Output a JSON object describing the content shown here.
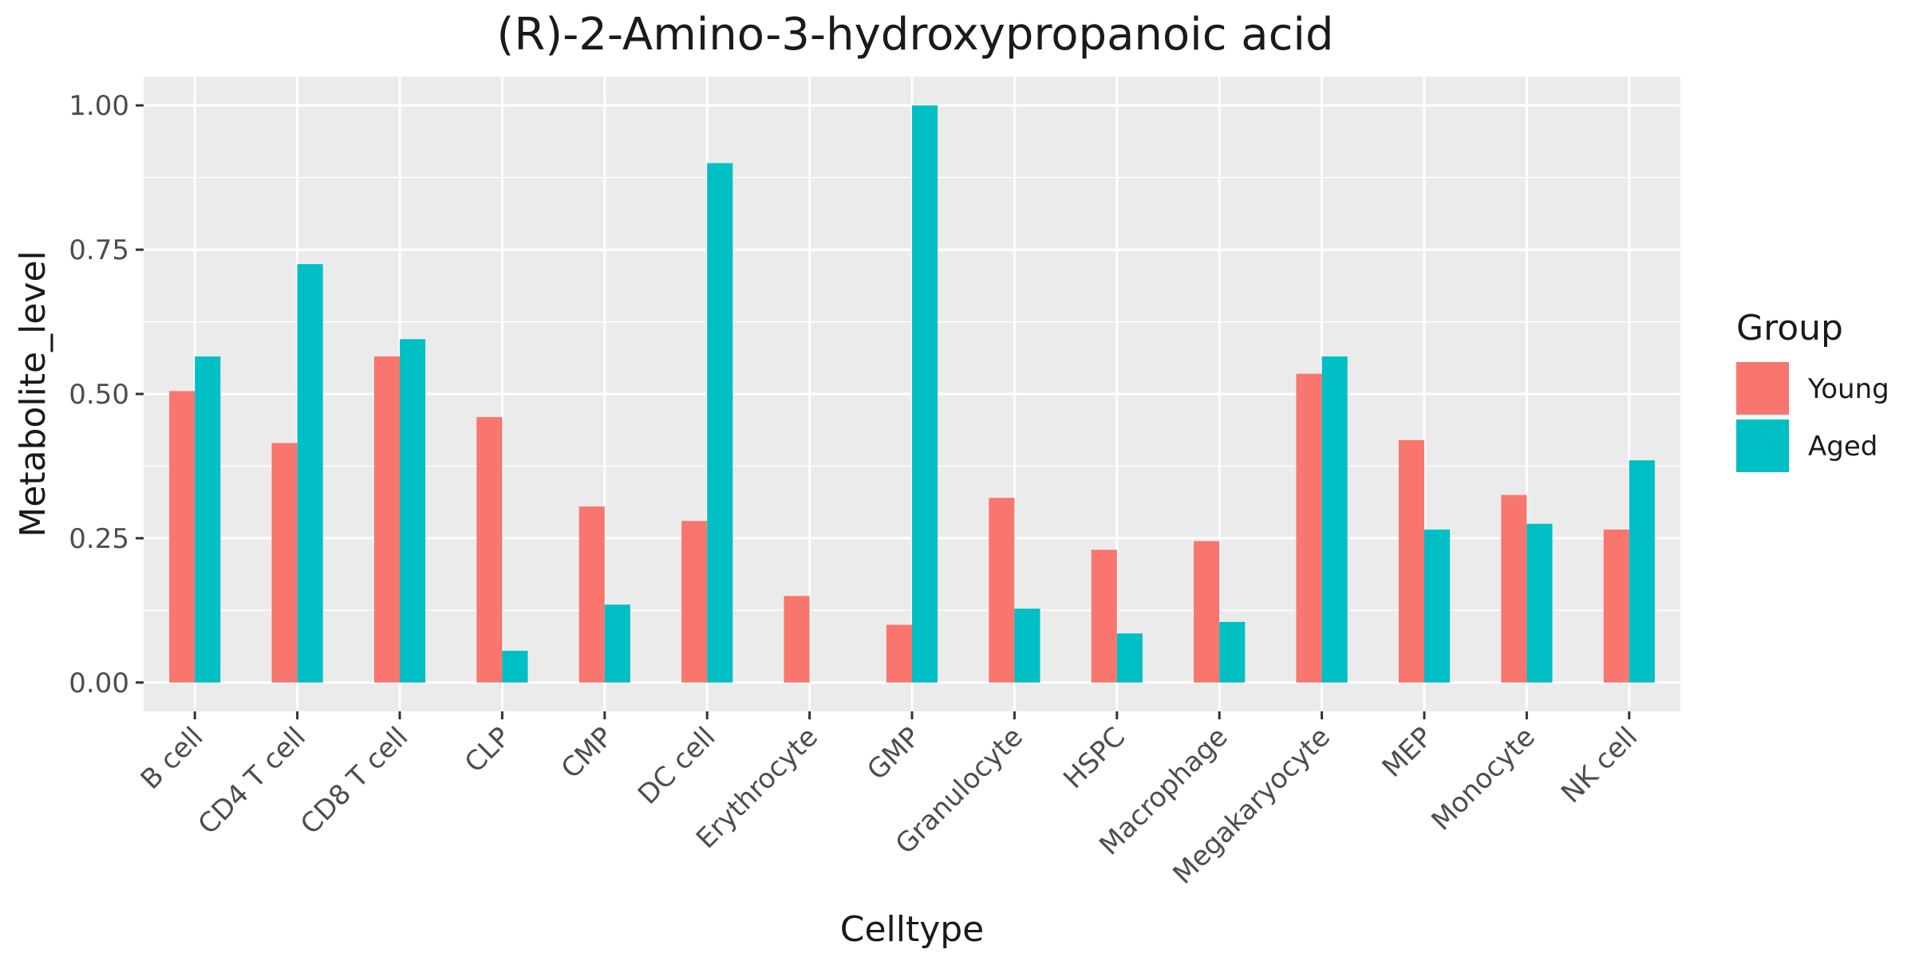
{
  "chart_data": {
    "type": "bar",
    "title": "(R)-2-Amino-3-hydroxypropanoic acid",
    "xlabel": "Celltype",
    "ylabel": "Metabolite_level",
    "ylim": [
      -0.05,
      1.05
    ],
    "yticks": [
      0,
      0.25,
      0.5,
      0.75,
      1.0
    ],
    "ytick_labels": [
      "0.00",
      "0.25",
      "0.50",
      "0.75",
      "1.00"
    ],
    "grid": true,
    "legend": {
      "title": "Group",
      "placement": "right"
    },
    "categories": [
      "B cell",
      "CD4 T cell",
      "CD8 T cell",
      "CLP",
      "CMP",
      "DC cell",
      "Erythrocyte",
      "GMP",
      "Granulocyte",
      "HSPC",
      "Macrophage",
      "Megakaryocyte",
      "MEP",
      "Monocyte",
      "NK cell"
    ],
    "series": [
      {
        "name": "Young",
        "color": "#F8766D",
        "values": [
          0.505,
          0.415,
          0.565,
          0.46,
          0.305,
          0.28,
          0.15,
          0.1,
          0.32,
          0.23,
          0.245,
          0.535,
          0.42,
          0.325,
          0.265
        ]
      },
      {
        "name": "Aged",
        "color": "#00BFC4",
        "values": [
          0.565,
          0.725,
          0.595,
          0.055,
          0.135,
          0.9,
          0.0,
          1.0,
          0.128,
          0.085,
          0.105,
          0.565,
          0.265,
          0.275,
          0.385
        ]
      }
    ]
  }
}
